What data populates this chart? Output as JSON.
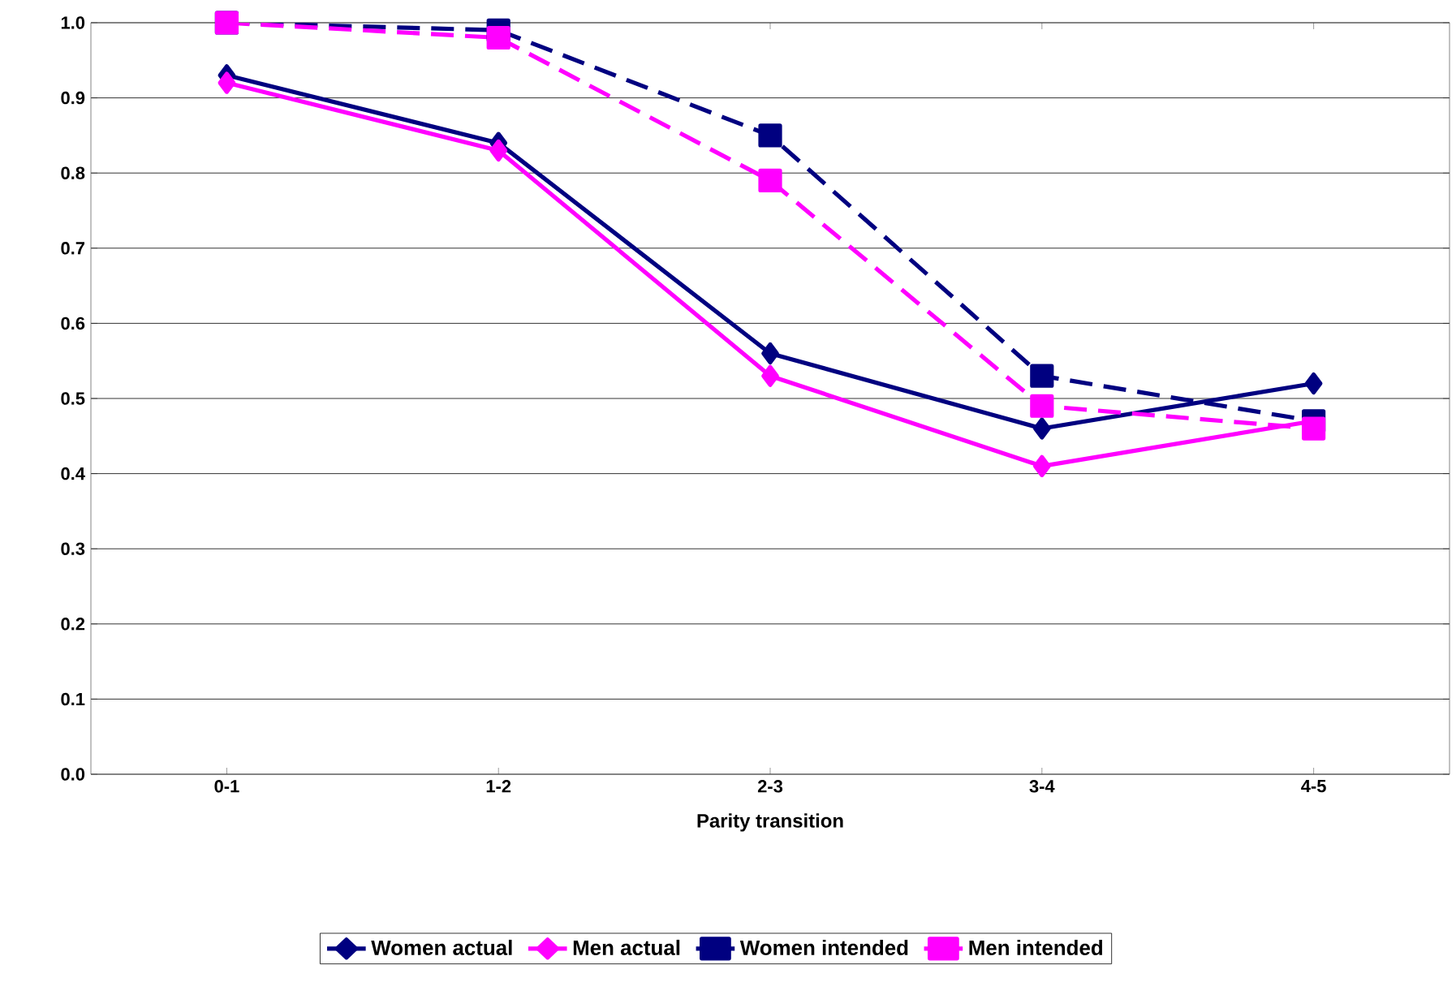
{
  "chart_data": {
    "type": "line",
    "xlabel": "Parity transition",
    "categories": [
      "0-1",
      "1-2",
      "2-3",
      "3-4",
      "4-5"
    ],
    "series": [
      {
        "name": "Women actual",
        "color": "#000080",
        "marker": "diamond",
        "line_style": "solid",
        "values": [
          0.93,
          0.84,
          0.56,
          0.46,
          0.52
        ]
      },
      {
        "name": "Men actual",
        "color": "#ff00ff",
        "marker": "diamond",
        "line_style": "solid",
        "values": [
          0.92,
          0.83,
          0.53,
          0.41,
          0.47
        ]
      },
      {
        "name": "Women intended",
        "color": "#000080",
        "marker": "square",
        "line_style": "dashed",
        "values": [
          1.0,
          0.99,
          0.85,
          0.53,
          0.47
        ]
      },
      {
        "name": "Men intended",
        "color": "#ff00ff",
        "marker": "square",
        "line_style": "dashed",
        "values": [
          1.0,
          0.98,
          0.79,
          0.49,
          0.46
        ]
      }
    ],
    "ylim": [
      0,
      1
    ],
    "yticks": [
      {
        "value": 0,
        "label": "0.0"
      },
      {
        "value": 0.1,
        "label": "0.1"
      },
      {
        "value": 0.2,
        "label": "0.2"
      },
      {
        "value": 0.3,
        "label": "0.3"
      },
      {
        "value": 0.4,
        "label": "0.4"
      },
      {
        "value": 0.5,
        "label": "0.5"
      },
      {
        "value": 0.6,
        "label": "0.6"
      },
      {
        "value": 0.7,
        "label": "0.7"
      },
      {
        "value": 0.8,
        "label": "0.8"
      },
      {
        "value": 0.9,
        "label": "0.9"
      },
      {
        "value": 1,
        "label": "1.0"
      }
    ],
    "grid": "y",
    "legend": "bottom"
  }
}
